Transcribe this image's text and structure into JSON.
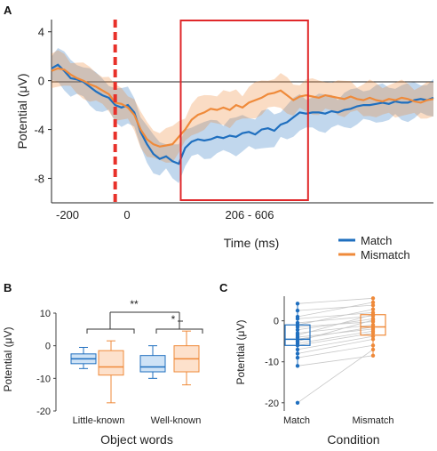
{
  "panels": {
    "a": "A",
    "b": "B",
    "c": "C"
  },
  "colors": {
    "match": "#1f6fbf",
    "mismatch": "#ef8a3a",
    "window": "#e0282a",
    "onset": "#e8312a"
  },
  "chart_data": [
    {
      "type": "line",
      "panel": "A",
      "xlabel": "Time (ms)",
      "ylabel": "Potential (μV)",
      "xticklabels": [
        "-200",
        "0",
        "206 - 606"
      ],
      "yticks": [
        4,
        0,
        -4,
        -8
      ],
      "xlim": [
        -200,
        1000
      ],
      "ylim": [
        -10,
        5
      ],
      "legend_position": "bottom-right",
      "time_window": [
        206,
        606
      ],
      "onset": 0,
      "x": [
        -200,
        -180,
        -160,
        -140,
        -120,
        -100,
        -80,
        -60,
        -40,
        -20,
        0,
        20,
        40,
        60,
        80,
        100,
        120,
        140,
        160,
        180,
        200,
        220,
        240,
        260,
        280,
        300,
        320,
        340,
        360,
        380,
        400,
        420,
        440,
        460,
        480,
        500,
        520,
        540,
        560,
        580,
        600,
        620,
        640,
        660,
        680,
        700,
        720,
        740,
        760,
        780,
        800,
        820,
        840,
        860,
        880,
        900,
        920,
        940,
        960,
        980,
        1000
      ],
      "series": [
        {
          "name": "Match",
          "values": [
            1.0,
            1.3,
            0.8,
            0.2,
            0.1,
            -0.1,
            -0.5,
            -0.9,
            -1.2,
            -1.4,
            -2.0,
            -2.2,
            -2.0,
            -2.6,
            -4.2,
            -5.2,
            -6.0,
            -6.4,
            -6.2,
            -6.6,
            -6.8,
            -5.5,
            -5.0,
            -4.8,
            -4.9,
            -4.8,
            -4.6,
            -4.7,
            -4.5,
            -4.6,
            -4.3,
            -4.2,
            -4.4,
            -4.0,
            -3.9,
            -4.1,
            -3.6,
            -3.4,
            -3.0,
            -2.6,
            -2.7,
            -2.6,
            -2.6,
            -2.7,
            -2.5,
            -2.6,
            -2.4,
            -2.3,
            -2.1,
            -2.0,
            -2.0,
            -1.9,
            -1.8,
            -1.9,
            -1.7,
            -1.8,
            -1.8,
            -1.6,
            -1.5,
            -1.6,
            -1.4
          ]
        },
        {
          "name": "Mismatch",
          "values": [
            0.8,
            1.0,
            0.9,
            0.5,
            0.2,
            0.0,
            -0.3,
            -0.5,
            -0.8,
            -1.1,
            -1.8,
            -1.9,
            -2.2,
            -2.8,
            -4.0,
            -4.8,
            -5.2,
            -5.4,
            -5.3,
            -5.2,
            -4.6,
            -4.0,
            -3.2,
            -2.8,
            -2.6,
            -2.3,
            -2.4,
            -2.2,
            -2.4,
            -2.0,
            -2.2,
            -1.8,
            -1.6,
            -1.4,
            -1.1,
            -1.0,
            -0.8,
            -1.2,
            -1.6,
            -1.3,
            -1.2,
            -1.3,
            -1.4,
            -1.2,
            -1.3,
            -1.4,
            -1.5,
            -1.3,
            -1.5,
            -1.6,
            -1.4,
            -1.6,
            -1.7,
            -1.5,
            -1.6,
            -1.4,
            -1.5,
            -1.7,
            -1.8,
            -1.6,
            -1.5
          ]
        }
      ]
    },
    {
      "type": "box",
      "panel": "B",
      "xlabel": "Object words",
      "ylabel": "Potential (μV)",
      "categories": [
        "Little-known",
        "Well-known"
      ],
      "yticks": [
        10,
        0,
        -10,
        -20
      ],
      "ylim": [
        -20,
        10
      ],
      "annotations": [
        "**",
        "*"
      ],
      "series": [
        {
          "name": "Match",
          "boxes": [
            {
              "min": -7,
              "q1": -5.5,
              "median": -4,
              "q3": -2.5,
              "max": -0.5
            },
            {
              "min": -10,
              "q1": -8,
              "median": -6.5,
              "q3": -3,
              "max": 0
            }
          ]
        },
        {
          "name": "Mismatch",
          "boxes": [
            {
              "min": -17.5,
              "q1": -9,
              "median": -6.5,
              "q3": -1.5,
              "max": 1.5
            },
            {
              "min": -12,
              "q1": -8,
              "median": -4,
              "q3": 0,
              "max": 4.5
            }
          ]
        }
      ]
    },
    {
      "type": "box",
      "panel": "C",
      "xlabel": "Condition",
      "ylabel": "Potential (μV)",
      "categories": [
        "Match",
        "Mismatch"
      ],
      "yticks": [
        0,
        -10,
        -20
      ],
      "ylim": [
        -22,
        6
      ],
      "boxes": [
        {
          "min": -11,
          "q1": -6,
          "median": -4.5,
          "q3": -1,
          "max": 4.5
        },
        {
          "min": -8.5,
          "q1": -3.5,
          "median": -1.5,
          "q3": 1.5,
          "max": 5.5
        }
      ],
      "paired_points": [
        [
          4.2,
          5.5
        ],
        [
          2.5,
          3.8
        ],
        [
          1.0,
          4.5
        ],
        [
          0.5,
          2.0
        ],
        [
          -0.5,
          1.2
        ],
        [
          -1.0,
          2.8
        ],
        [
          -1.5,
          -0.2
        ],
        [
          -2.2,
          0.5
        ],
        [
          -3.0,
          -1.0
        ],
        [
          -3.5,
          1.5
        ],
        [
          -4.0,
          -2.0
        ],
        [
          -4.5,
          -1.5
        ],
        [
          -5.0,
          0.2
        ],
        [
          -5.5,
          -2.5
        ],
        [
          -6.0,
          -3.0
        ],
        [
          -7.0,
          -3.8
        ],
        [
          -8.0,
          -4.5
        ],
        [
          -9.0,
          -6.0
        ],
        [
          -11.0,
          -8.5
        ],
        [
          -20.0,
          -7.0
        ]
      ]
    }
  ]
}
